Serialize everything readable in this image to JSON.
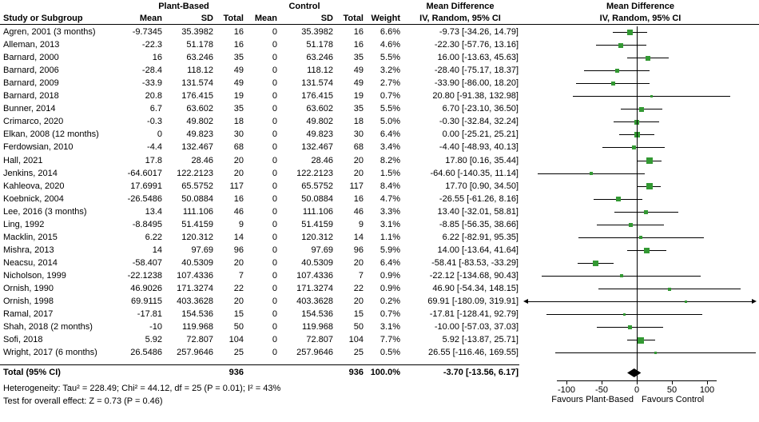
{
  "header": {
    "group1_label": "Plant-Based",
    "group2_label": "Control",
    "study_col": "Study or Subgroup",
    "mean_col": "Mean",
    "sd_col": "SD",
    "total_col": "Total",
    "weight_col": "Weight",
    "effect_col_title": "Mean Difference",
    "effect_col_sub": "IV, Random, 95% CI",
    "plot_title": "Mean Difference",
    "plot_sub": "IV, Random, 95% CI"
  },
  "chart_data": {
    "type": "forest",
    "effect_label": "Mean Difference",
    "method": "IV, Random, 95% CI",
    "marker_color": "#339933",
    "line_color": "#000000",
    "axis_ticks": [
      -100,
      -50,
      0,
      50,
      100
    ],
    "favours_left": "Favours Plant-Based",
    "favours_right": "Favours Control",
    "studies": [
      {
        "label": "Agren, 2001 (3 months)",
        "m1": "-9.7345",
        "sd1": "35.3982",
        "n1": "16",
        "m2": "0",
        "sd2": "35.3982",
        "n2": "16",
        "wt": "6.6%",
        "ci": "-9.73 [-34.26, 14.79]",
        "est": -9.73,
        "lo": -34.26,
        "hi": 14.79,
        "w": 6.6
      },
      {
        "label": "Alleman, 2013",
        "m1": "-22.3",
        "sd1": "51.178",
        "n1": "16",
        "m2": "0",
        "sd2": "51.178",
        "n2": "16",
        "wt": "4.6%",
        "ci": "-22.30 [-57.76, 13.16]",
        "est": -22.3,
        "lo": -57.76,
        "hi": 13.16,
        "w": 4.6
      },
      {
        "label": "Barnard, 2000",
        "m1": "16",
        "sd1": "63.246",
        "n1": "35",
        "m2": "0",
        "sd2": "63.246",
        "n2": "35",
        "wt": "5.5%",
        "ci": "16.00 [-13.63, 45.63]",
        "est": 16.0,
        "lo": -13.63,
        "hi": 45.63,
        "w": 5.5
      },
      {
        "label": "Barnard, 2006",
        "m1": "-28.4",
        "sd1": "118.12",
        "n1": "49",
        "m2": "0",
        "sd2": "118.12",
        "n2": "49",
        "wt": "3.2%",
        "ci": "-28.40 [-75.17, 18.37]",
        "est": -28.4,
        "lo": -75.17,
        "hi": 18.37,
        "w": 3.2
      },
      {
        "label": "Barnard, 2009",
        "m1": "-33.9",
        "sd1": "131.574",
        "n1": "49",
        "m2": "0",
        "sd2": "131.574",
        "n2": "49",
        "wt": "2.7%",
        "ci": "-33.90 [-86.00, 18.20]",
        "est": -33.9,
        "lo": -86.0,
        "hi": 18.2,
        "w": 2.7
      },
      {
        "label": "Barnard, 2018",
        "m1": "20.8",
        "sd1": "176.415",
        "n1": "19",
        "m2": "0",
        "sd2": "176.415",
        "n2": "19",
        "wt": "0.7%",
        "ci": "20.80 [-91.38, 132.98]",
        "est": 20.8,
        "lo": -91.38,
        "hi": 132.98,
        "w": 0.7
      },
      {
        "label": "Bunner, 2014",
        "m1": "6.7",
        "sd1": "63.602",
        "n1": "35",
        "m2": "0",
        "sd2": "63.602",
        "n2": "35",
        "wt": "5.5%",
        "ci": "6.70 [-23.10, 36.50]",
        "est": 6.7,
        "lo": -23.1,
        "hi": 36.5,
        "w": 5.5
      },
      {
        "label": "Crimarco, 2020",
        "m1": "-0.3",
        "sd1": "49.802",
        "n1": "18",
        "m2": "0",
        "sd2": "49.802",
        "n2": "18",
        "wt": "5.0%",
        "ci": "-0.30 [-32.84, 32.24]",
        "est": -0.3,
        "lo": -32.84,
        "hi": 32.24,
        "w": 5.0
      },
      {
        "label": "Elkan, 2008 (12 months)",
        "m1": "0",
        "sd1": "49.823",
        "n1": "30",
        "m2": "0",
        "sd2": "49.823",
        "n2": "30",
        "wt": "6.4%",
        "ci": "0.00 [-25.21, 25.21]",
        "est": 0.0,
        "lo": -25.21,
        "hi": 25.21,
        "w": 6.4
      },
      {
        "label": "Ferdowsian, 2010",
        "m1": "-4.4",
        "sd1": "132.467",
        "n1": "68",
        "m2": "0",
        "sd2": "132.467",
        "n2": "68",
        "wt": "3.4%",
        "ci": "-4.40 [-48.93, 40.13]",
        "est": -4.4,
        "lo": -48.93,
        "hi": 40.13,
        "w": 3.4
      },
      {
        "label": "Hall, 2021",
        "m1": "17.8",
        "sd1": "28.46",
        "n1": "20",
        "m2": "0",
        "sd2": "28.46",
        "n2": "20",
        "wt": "8.2%",
        "ci": "17.80 [0.16, 35.44]",
        "est": 17.8,
        "lo": 0.16,
        "hi": 35.44,
        "w": 8.2
      },
      {
        "label": "Jenkins, 2014",
        "m1": "-64.6017",
        "sd1": "122.2123",
        "n1": "20",
        "m2": "0",
        "sd2": "122.2123",
        "n2": "20",
        "wt": "1.5%",
        "ci": "-64.60 [-140.35, 11.14]",
        "est": -64.6,
        "lo": -140.35,
        "hi": 11.14,
        "w": 1.5
      },
      {
        "label": "Kahleova, 2020",
        "m1": "17.6991",
        "sd1": "65.5752",
        "n1": "117",
        "m2": "0",
        "sd2": "65.5752",
        "n2": "117",
        "wt": "8.4%",
        "ci": "17.70 [0.90, 34.50]",
        "est": 17.7,
        "lo": 0.9,
        "hi": 34.5,
        "w": 8.4
      },
      {
        "label": "Koebnick, 2004",
        "m1": "-26.5486",
        "sd1": "50.0884",
        "n1": "16",
        "m2": "0",
        "sd2": "50.0884",
        "n2": "16",
        "wt": "4.7%",
        "ci": "-26.55 [-61.26, 8.16]",
        "est": -26.55,
        "lo": -61.26,
        "hi": 8.16,
        "w": 4.7
      },
      {
        "label": "Lee, 2016 (3 months)",
        "m1": "13.4",
        "sd1": "111.106",
        "n1": "46",
        "m2": "0",
        "sd2": "111.106",
        "n2": "46",
        "wt": "3.3%",
        "ci": "13.40 [-32.01, 58.81]",
        "est": 13.4,
        "lo": -32.01,
        "hi": 58.81,
        "w": 3.3
      },
      {
        "label": "Ling, 1992",
        "m1": "-8.8495",
        "sd1": "51.4159",
        "n1": "9",
        "m2": "0",
        "sd2": "51.4159",
        "n2": "9",
        "wt": "3.1%",
        "ci": "-8.85 [-56.35, 38.66]",
        "est": -8.85,
        "lo": -56.35,
        "hi": 38.66,
        "w": 3.1
      },
      {
        "label": "Macklin, 2015",
        "m1": "6.22",
        "sd1": "120.312",
        "n1": "14",
        "m2": "0",
        "sd2": "120.312",
        "n2": "14",
        "wt": "1.1%",
        "ci": "6.22 [-82.91, 95.35]",
        "est": 6.22,
        "lo": -82.91,
        "hi": 95.35,
        "w": 1.1
      },
      {
        "label": "Mishra, 2013",
        "m1": "14",
        "sd1": "97.69",
        "n1": "96",
        "m2": "0",
        "sd2": "97.69",
        "n2": "96",
        "wt": "5.9%",
        "ci": "14.00 [-13.64, 41.64]",
        "est": 14.0,
        "lo": -13.64,
        "hi": 41.64,
        "w": 5.9
      },
      {
        "label": "Neacsu, 2014",
        "m1": "-58.407",
        "sd1": "40.5309",
        "n1": "20",
        "m2": "0",
        "sd2": "40.5309",
        "n2": "20",
        "wt": "6.4%",
        "ci": "-58.41 [-83.53, -33.29]",
        "est": -58.41,
        "lo": -83.53,
        "hi": -33.29,
        "w": 6.4
      },
      {
        "label": "Nicholson, 1999",
        "m1": "-22.1238",
        "sd1": "107.4336",
        "n1": "7",
        "m2": "0",
        "sd2": "107.4336",
        "n2": "7",
        "wt": "0.9%",
        "ci": "-22.12 [-134.68, 90.43]",
        "est": -22.12,
        "lo": -134.68,
        "hi": 90.43,
        "w": 0.9
      },
      {
        "label": "Ornish, 1990",
        "m1": "46.9026",
        "sd1": "171.3274",
        "n1": "22",
        "m2": "0",
        "sd2": "171.3274",
        "n2": "22",
        "wt": "0.9%",
        "ci": "46.90 [-54.34, 148.15]",
        "est": 46.9,
        "lo": -54.34,
        "hi": 148.15,
        "w": 0.9
      },
      {
        "label": "Ornish, 1998",
        "m1": "69.9115",
        "sd1": "403.3628",
        "n1": "20",
        "m2": "0",
        "sd2": "403.3628",
        "n2": "20",
        "wt": "0.2%",
        "ci": "69.91 [-180.09, 319.91]",
        "est": 69.91,
        "lo": -180.09,
        "hi": 319.91,
        "w": 0.2
      },
      {
        "label": "Ramal, 2017",
        "m1": "-17.81",
        "sd1": "154.536",
        "n1": "15",
        "m2": "0",
        "sd2": "154.536",
        "n2": "15",
        "wt": "0.7%",
        "ci": "-17.81 [-128.41, 92.79]",
        "est": -17.81,
        "lo": -128.41,
        "hi": 92.79,
        "w": 0.7
      },
      {
        "label": "Shah, 2018 (2 months)",
        "m1": "-10",
        "sd1": "119.968",
        "n1": "50",
        "m2": "0",
        "sd2": "119.968",
        "n2": "50",
        "wt": "3.1%",
        "ci": "-10.00 [-57.03, 37.03]",
        "est": -10.0,
        "lo": -57.03,
        "hi": 37.03,
        "w": 3.1
      },
      {
        "label": "Sofi, 2018",
        "m1": "5.92",
        "sd1": "72.807",
        "n1": "104",
        "m2": "0",
        "sd2": "72.807",
        "n2": "104",
        "wt": "7.7%",
        "ci": "5.92 [-13.87, 25.71]",
        "est": 5.92,
        "lo": -13.87,
        "hi": 25.71,
        "w": 7.7
      },
      {
        "label": "Wright, 2017 (6 months)",
        "m1": "26.5486",
        "sd1": "257.9646",
        "n1": "25",
        "m2": "0",
        "sd2": "257.9646",
        "n2": "25",
        "wt": "0.5%",
        "ci": "26.55 [-116.46, 169.55]",
        "est": 26.55,
        "lo": -116.46,
        "hi": 169.55,
        "w": 0.5
      }
    ],
    "total": {
      "label": "Total (95% CI)",
      "n1": "936",
      "n2": "936",
      "wt": "100.0%",
      "ci": "-3.70 [-13.56, 6.17]",
      "est": -3.7,
      "lo": -13.56,
      "hi": 6.17
    },
    "footnotes": {
      "heterogeneity": "Heterogeneity: Tau² = 228.49; Chi² = 44.12, df = 25 (P = 0.01); I² = 43%",
      "overall_effect": "Test for overall effect: Z = 0.73 (P = 0.46)"
    }
  }
}
